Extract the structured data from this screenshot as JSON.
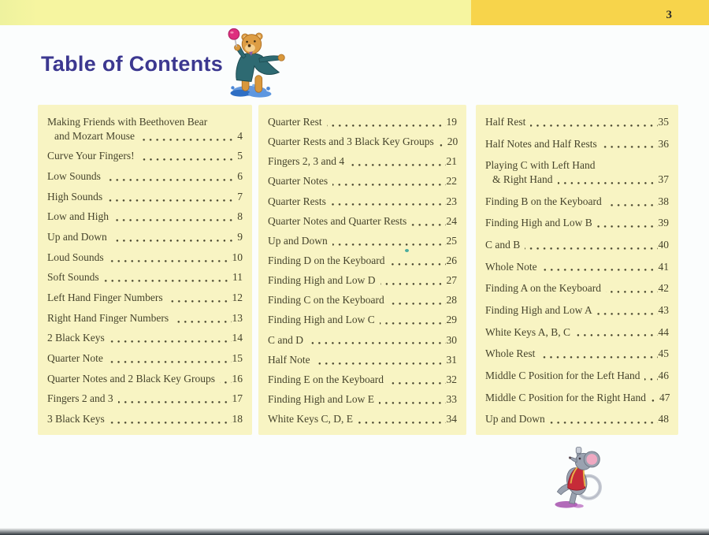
{
  "page": {
    "number": "3",
    "title": "Table of Contents"
  },
  "colors": {
    "topbar_light": "#f6f5a0",
    "topbar_gold": "#f7d44b",
    "panel_yellow": "#f8f4c3",
    "title_purple": "#3c3890",
    "entry_text": "#46442c"
  },
  "illustrations": {
    "bear": "teddy-bear-in-teal-coat-holding-pink-lollipop-splashing-in-water",
    "mouse": "gray-mouse-in-red-coat-dancing-with-curled-tail"
  },
  "toc": {
    "columns": [
      {
        "entries": [
          {
            "pre": "Making Friends with Beethoven Bear",
            "label": "and Mozart Mouse",
            "page": "4"
          },
          {
            "label": "Curve Your Fingers!",
            "page": "5"
          },
          {
            "label": "Low Sounds",
            "page": "6"
          },
          {
            "label": "High Sounds",
            "page": "7"
          },
          {
            "label": "Low and High",
            "page": "8"
          },
          {
            "label": "Up and Down",
            "page": "9"
          },
          {
            "label": "Loud Sounds",
            "page": "10"
          },
          {
            "label": "Soft Sounds",
            "page": "11"
          },
          {
            "label": "Left Hand Finger Numbers",
            "page": "12"
          },
          {
            "label": "Right Hand Finger Numbers",
            "page": "13"
          },
          {
            "label": "2 Black Keys",
            "page": "14"
          },
          {
            "label": "Quarter Note",
            "page": "15"
          },
          {
            "label": "Quarter Notes and 2 Black Key Groups",
            "page": "16"
          },
          {
            "label": "Fingers 2 and 3",
            "page": "17"
          },
          {
            "label": "3 Black Keys",
            "page": "18"
          }
        ]
      },
      {
        "entries": [
          {
            "label": "Quarter Rest",
            "page": "19"
          },
          {
            "label": "Quarter Rests and 3 Black Key Groups",
            "page": "20"
          },
          {
            "label": "Fingers 2, 3 and 4",
            "page": "21"
          },
          {
            "label": "Quarter Notes",
            "page": "22"
          },
          {
            "label": "Quarter Rests",
            "page": "23"
          },
          {
            "label": "Quarter Notes and Quarter Rests",
            "page": "24"
          },
          {
            "label": "Up and Down",
            "page": "25"
          },
          {
            "label": "Finding D on the Keyboard",
            "page": "26"
          },
          {
            "label": "Finding High and Low D",
            "page": "27"
          },
          {
            "label": "Finding C on the Keyboard",
            "page": "28"
          },
          {
            "label": "Finding High and Low C",
            "page": "29"
          },
          {
            "label": "C and D",
            "page": "30"
          },
          {
            "label": "Half Note",
            "page": "31"
          },
          {
            "label": "Finding E on the Keyboard",
            "page": "32"
          },
          {
            "label": "Finding High and Low E",
            "page": "33"
          },
          {
            "label": "White Keys C, D, E",
            "page": "34"
          }
        ]
      },
      {
        "entries": [
          {
            "label": "Half Rest",
            "page": "35"
          },
          {
            "label": "Half Notes and Half Rests",
            "page": "36"
          },
          {
            "pre": "Playing C with Left Hand",
            "label": "& Right Hand",
            "page": "37"
          },
          {
            "label": "Finding B on the Keyboard",
            "page": "38"
          },
          {
            "label": "Finding High and Low B",
            "page": "39"
          },
          {
            "label": "C and B",
            "page": "40"
          },
          {
            "label": "Whole Note",
            "page": "41"
          },
          {
            "label": "Finding A on the Keyboard",
            "page": "42"
          },
          {
            "label": "Finding High and Low A",
            "page": "43"
          },
          {
            "label": "White Keys A, B, C",
            "page": "44"
          },
          {
            "label": "Whole Rest",
            "page": "45"
          },
          {
            "label": "Middle C Position for the Left Hand",
            "page": "46"
          },
          {
            "label": "Middle C Position for the Right Hand",
            "page": "47"
          },
          {
            "label": "Up and Down",
            "page": "48"
          }
        ]
      }
    ]
  }
}
